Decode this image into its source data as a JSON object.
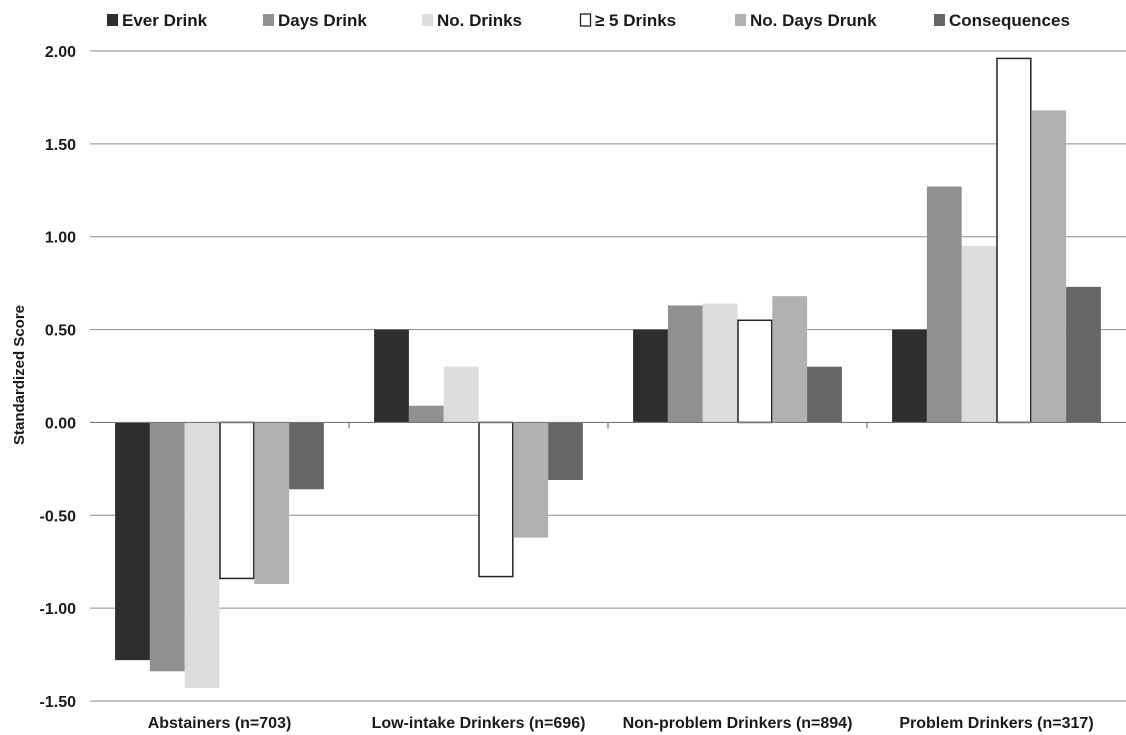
{
  "chart_data": {
    "type": "bar",
    "categories": [
      "Abstainers (n=703)",
      "Low-intake Drinkers (n=696)",
      "Non-problem Drinkers (n=894)",
      "Problem Drinkers (n=317)"
    ],
    "series": [
      {
        "name": "Ever Drink",
        "color": "#2e2e2e",
        "values": [
          -1.28,
          0.5,
          0.5,
          0.5
        ]
      },
      {
        "name": "Days Drink",
        "color": "#909090",
        "values": [
          -1.34,
          0.09,
          0.63,
          1.27
        ]
      },
      {
        "name": "No. Drinks",
        "color": "#dcdcdc",
        "values": [
          -1.43,
          0.3,
          0.64,
          0.95
        ]
      },
      {
        "name": "≥ 5 Drinks",
        "color": "#ffffff",
        "outline": "#222222",
        "values": [
          -0.84,
          -0.83,
          0.55,
          1.96
        ]
      },
      {
        "name": "No. Days Drunk",
        "color": "#b1b1b1",
        "values": [
          -0.87,
          -0.62,
          0.68,
          1.68
        ]
      },
      {
        "name": "Consequences",
        "color": "#666666",
        "values": [
          -0.36,
          -0.31,
          0.3,
          0.73
        ]
      }
    ],
    "ylabel": "Standardized Score",
    "xlabel": "",
    "ylim": [
      -1.5,
      2.0
    ],
    "yticks": [
      "-1.50",
      "-1.00",
      "-0.50",
      "0.00",
      "0.50",
      "1.00",
      "1.50",
      "2.00"
    ],
    "grid": true,
    "legend_position": "top"
  }
}
